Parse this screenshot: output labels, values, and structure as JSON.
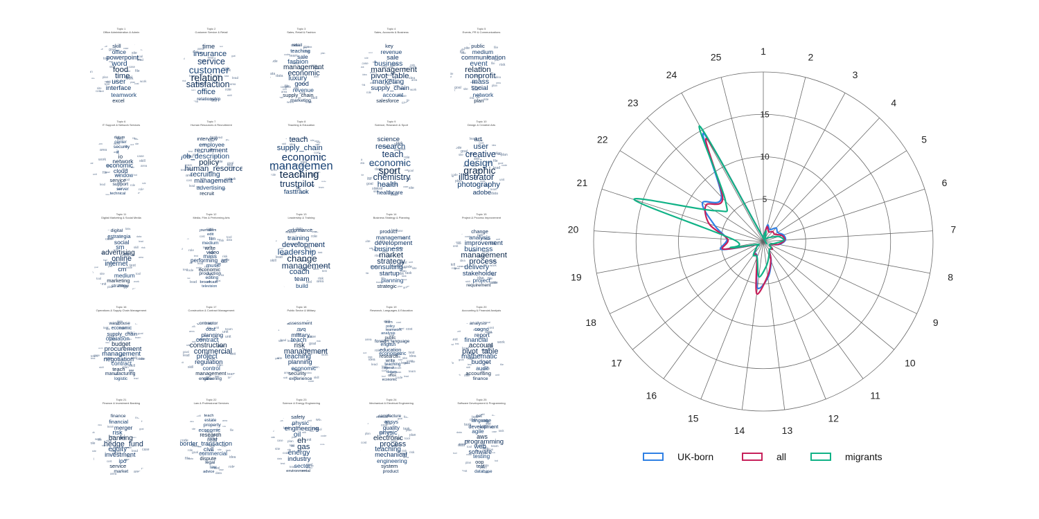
{
  "wordclouds": [
    {
      "title": "Topic 1",
      "subtitle": "Office Administration & Admin",
      "words": [
        "skill",
        "office",
        "powerpoint",
        "word",
        "food",
        "time",
        "user",
        "interface",
        "teamwork",
        "excel"
      ]
    },
    {
      "title": "Topic 2",
      "subtitle": "Customer Service & Retail",
      "words": [
        "time",
        "insurance",
        "service",
        "customer",
        "relation",
        "satisfaction",
        "office",
        "relationship"
      ]
    },
    {
      "title": "Topic 3",
      "subtitle": "Sales, Retail & Fashion",
      "words": [
        "retail",
        "teaching",
        "sale",
        "fashion",
        "management",
        "economic",
        "luxury",
        "good",
        "revenue",
        "supply_chain",
        "marketing"
      ]
    },
    {
      "title": "Topic 4",
      "subtitle": "Sales, Accounts & Business",
      "words": [
        "key",
        "revenue",
        "sale",
        "business",
        "management",
        "pivot_table",
        "marketing",
        "supply_chain",
        "account",
        "salesforce"
      ]
    },
    {
      "title": "Topic 5",
      "subtitle": "Events, PR & Communications",
      "words": [
        "public",
        "medium",
        "communication",
        "event",
        "relation",
        "nonprofit",
        "mass",
        "social",
        "network",
        "plan"
      ]
    },
    {
      "title": "Topic 6",
      "subtitle": "IT Support & Network Services",
      "words": [
        "datum",
        "center",
        "security",
        "it",
        "io",
        "network",
        "economic",
        "cloud",
        "window",
        "service",
        "support",
        "server",
        "technical"
      ]
    },
    {
      "title": "Topic 7",
      "subtitle": "Human Resources & Recruitment",
      "words": [
        "interview",
        "employee",
        "recruitment",
        "job_description",
        "policy",
        "human_resource",
        "recruiting",
        "management",
        "advertising",
        "recruit"
      ]
    },
    {
      "title": "Topic 8",
      "subtitle": "Teaching & Education",
      "words": [
        "teach",
        "supply_chain",
        "economic",
        "management",
        "teaching",
        "trustpilot",
        "fasttrack"
      ]
    },
    {
      "title": "Topic 9",
      "subtitle": "Science, Research & Sport",
      "words": [
        "science",
        "research",
        "teach",
        "economic",
        "sport",
        "chemistry",
        "health",
        "healthcare"
      ]
    },
    {
      "title": "Topic 10",
      "subtitle": "Design & Creative Arts",
      "words": [
        "art",
        "user",
        "creative",
        "design",
        "graphic",
        "illustrator",
        "photography",
        "adobe"
      ]
    },
    {
      "title": "Topic 11",
      "subtitle": "Digital Marketing & Social Media",
      "words": [
        "digital",
        "estrategia",
        "social",
        "sm",
        "advertising",
        "online",
        "internet",
        "cm",
        "medium",
        "marketing",
        "strategy"
      ]
    },
    {
      "title": "Topic 12",
      "subtitle": "Media, Film & Performing Arts",
      "words": [
        "journalism",
        "edit",
        "film",
        "medium",
        "write",
        "video",
        "mass",
        "performing_art",
        "music",
        "economic",
        "production",
        "editing",
        "broadcast",
        "television"
      ]
    },
    {
      "title": "Topic 13",
      "subtitle": "Leadership & Training",
      "words": [
        "performance",
        "training",
        "development",
        "leadership",
        "change",
        "management",
        "coach",
        "team",
        "build"
      ]
    },
    {
      "title": "Topic 14",
      "subtitle": "Business Strategy & Planning",
      "words": [
        "product",
        "management",
        "development",
        "business",
        "market",
        "strategy",
        "consulting",
        "startup",
        "planning",
        "strategic"
      ]
    },
    {
      "title": "Topic 15",
      "subtitle": "Project & Process Improvement",
      "words": [
        "change",
        "analysis",
        "improvement",
        "business",
        "management",
        "process",
        "delivery",
        "stakeholder",
        "project",
        "requirement"
      ]
    },
    {
      "title": "Topic 16",
      "subtitle": "Operations & Supply Chain Management",
      "words": [
        "warehouse",
        "economic",
        "supply_chain",
        "operation",
        "budget",
        "procurement",
        "management",
        "negotiation",
        "contract",
        "teach",
        "manufacturing",
        "logistic"
      ]
    },
    {
      "title": "Topic 17",
      "subtitle": "Construction & Contract Management",
      "words": [
        "contractor",
        "cost",
        "planning",
        "contract",
        "construction",
        "commercial",
        "project",
        "regulation",
        "control",
        "management",
        "engineering"
      ]
    },
    {
      "title": "Topic 18",
      "subtitle": "Public Sector & Military",
      "words": [
        "assessment",
        "nvq",
        "military",
        "teach",
        "risk",
        "management",
        "teaching",
        "planning",
        "economic",
        "security",
        "experience"
      ]
    },
    {
      "title": "Topic 19",
      "subtitle": "Research, Languages & Education",
      "words": [
        "learn",
        "policy",
        "teamwork",
        "analysis",
        "public",
        "foreign_language",
        "english",
        "education",
        "econometric",
        "research",
        "write",
        "teaching",
        "speak",
        "datum",
        "office",
        "economic"
      ]
    },
    {
      "title": "Topic 20",
      "subtitle": "Accounting & Financial Analysis",
      "words": [
        "analysis",
        "cogno",
        "report",
        "financial",
        "account",
        "pivot_table",
        "mathematic",
        "budget",
        "audit",
        "accounting",
        "finance"
      ]
    },
    {
      "title": "Topic 21",
      "subtitle": "Finance & Investment Banking",
      "words": [
        "finance",
        "financial",
        "merger",
        "risk",
        "banking",
        "hedge_fund",
        "equity",
        "investment",
        "ipo",
        "service",
        "market"
      ]
    },
    {
      "title": "Topic 22",
      "subtitle": "Law & Professional Services",
      "words": [
        "teach",
        "estate",
        "property",
        "economic",
        "research",
        "real",
        "border_transaction",
        "civil",
        "commercial",
        "dispute",
        "legal",
        "law",
        "advice"
      ]
    },
    {
      "title": "Topic 23",
      "subtitle": "Science & Energy Engineering",
      "words": [
        "safety",
        "physic",
        "engineering",
        "oil",
        "eh",
        "gas",
        "energy",
        "industry",
        "sector",
        "environmental"
      ]
    },
    {
      "title": "Topic 24",
      "subtitle": "Mechanical & Electrical Engineering",
      "words": [
        "manufacture",
        "ansys",
        "quality",
        "physic",
        "electronic",
        "process",
        "teaching",
        "mechanical",
        "engineering",
        "system",
        "product"
      ]
    },
    {
      "title": "Topic 25",
      "subtitle": "Software Development & Programming",
      "words": [
        "net",
        "language",
        "development",
        "agile",
        "aws",
        "programming",
        "web",
        "software",
        "testing",
        "oop",
        "test",
        "database"
      ]
    }
  ],
  "chart_data": {
    "type": "radar",
    "categories": [
      "1",
      "2",
      "3",
      "4",
      "5",
      "6",
      "7",
      "8",
      "9",
      "10",
      "11",
      "12",
      "13",
      "14",
      "15",
      "16",
      "17",
      "18",
      "19",
      "20",
      "21",
      "22",
      "23",
      "24",
      "25"
    ],
    "rlim": [
      0,
      20
    ],
    "rticks": [
      "5",
      "10",
      "15"
    ],
    "rtick_values": [
      5,
      10,
      15
    ],
    "grid": true,
    "series": [
      {
        "name": "UK-born",
        "color": "#2f80e4",
        "values": [
          0.6,
          2.0,
          1.6,
          2.2,
          2.0,
          2.5,
          2.6,
          1.9,
          0.9,
          1.4,
          1.2,
          2.5,
          4.3,
          5.5,
          2.0,
          1.7,
          1.0,
          0.9,
          5.0,
          4.3,
          6.0,
          8.5,
          7.2,
          14.5,
          0.8
        ]
      },
      {
        "name": "all",
        "color": "#c7205a",
        "values": [
          0.6,
          1.8,
          1.3,
          1.6,
          1.6,
          2.3,
          2.5,
          1.8,
          0.9,
          1.4,
          1.2,
          2.4,
          4.1,
          6.2,
          2.1,
          1.8,
          1.0,
          0.9,
          4.8,
          4.2,
          6.7,
          8.0,
          7.0,
          13.8,
          0.8
        ]
      },
      {
        "name": "migrants",
        "color": "#10b286",
        "values": [
          0.6,
          1.3,
          0.5,
          0.5,
          0.9,
          1.9,
          2.4,
          1.3,
          0.8,
          1.2,
          1.2,
          1.8,
          2.9,
          4.2,
          2.0,
          2.0,
          1.0,
          0.8,
          3.9,
          3.5,
          16.0,
          6.8,
          6.5,
          15.5,
          0.8
        ]
      }
    ]
  }
}
